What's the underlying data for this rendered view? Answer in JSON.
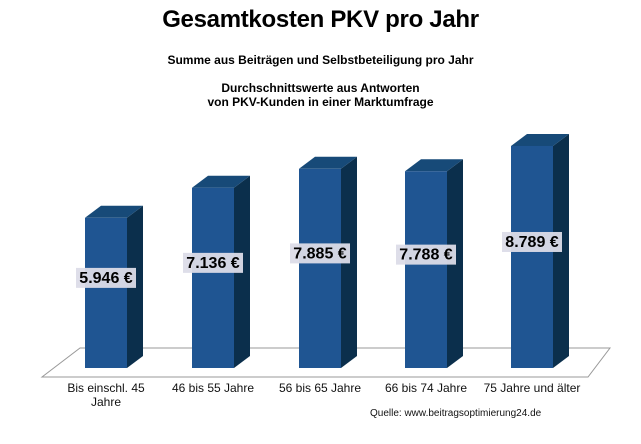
{
  "chart_data": {
    "type": "bar",
    "title": "Gesamtkosten PKV pro Jahr",
    "subtitle_lines": [
      "Summe aus Beiträgen  und Selbstbeteiligung  pro Jahr",
      "Durchschnittswerte  aus  Antworten",
      "von PKV-Kunden  in einer  Marktumfrage"
    ],
    "categories": [
      [
        "Bis einschl. 45",
        "Jahre"
      ],
      [
        "46 bis 55 Jahre"
      ],
      [
        "56 bis 65 Jahre"
      ],
      [
        "66 bis 74 Jahre"
      ],
      [
        "75 Jahre und älter"
      ]
    ],
    "values": [
      5946,
      7136,
      7885,
      7788,
      8789
    ],
    "value_labels": [
      "5.946 €",
      "7.136 €",
      "7.885 €",
      "7.788 €",
      "8.789 €"
    ],
    "ylim": [
      0,
      9500
    ],
    "grid": false,
    "legend": "none",
    "source": "Quelle: www.beitragsoptimierung24.de",
    "colors": {
      "bar_front": "#1f5592",
      "bar_side": "#0b2f4c",
      "bar_top": "#174a78",
      "floor": "#ffffff",
      "floor_stroke": "#999999",
      "label_bg": "#dcdce8"
    }
  }
}
